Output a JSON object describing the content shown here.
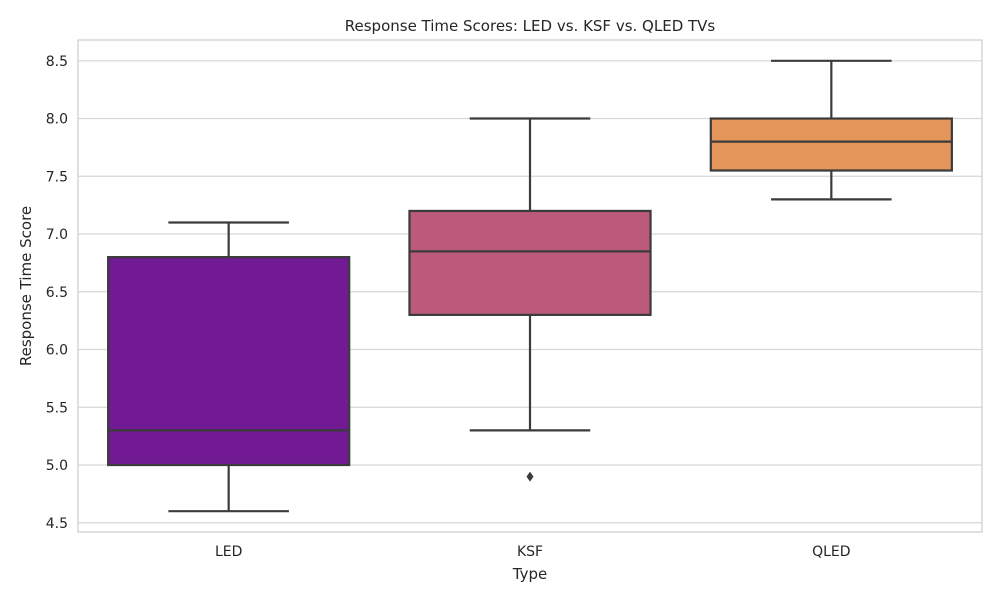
{
  "chart_data": {
    "type": "box",
    "title": "Response Time Scores: LED vs. KSF vs. QLED TVs",
    "xlabel": "Type",
    "ylabel": "Response Time Score",
    "ylim": [
      4.42,
      8.68
    ],
    "yticks": [
      4.5,
      5.0,
      5.5,
      6.0,
      6.5,
      7.0,
      7.5,
      8.0,
      8.5
    ],
    "ytick_labels": [
      "4.5",
      "5.0",
      "5.5",
      "6.0",
      "6.5",
      "7.0",
      "7.5",
      "8.0",
      "8.5"
    ],
    "grid": true,
    "categories": [
      "LED",
      "KSF",
      "QLED"
    ],
    "boxes": [
      {
        "category": "LED",
        "whisker_low": 4.6,
        "q1": 5.0,
        "median": 5.3,
        "q3": 6.8,
        "whisker_high": 7.1,
        "outliers": [],
        "color": "#721a94"
      },
      {
        "category": "KSF",
        "whisker_low": 5.3,
        "q1": 6.3,
        "median": 6.85,
        "q3": 7.2,
        "whisker_high": 8.0,
        "outliers": [
          4.9
        ],
        "color": "#bc5a7c"
      },
      {
        "category": "QLED",
        "whisker_low": 7.3,
        "q1": 7.55,
        "median": 7.8,
        "q3": 8.0,
        "whisker_high": 8.5,
        "outliers": [],
        "color": "#e3955a"
      }
    ]
  }
}
